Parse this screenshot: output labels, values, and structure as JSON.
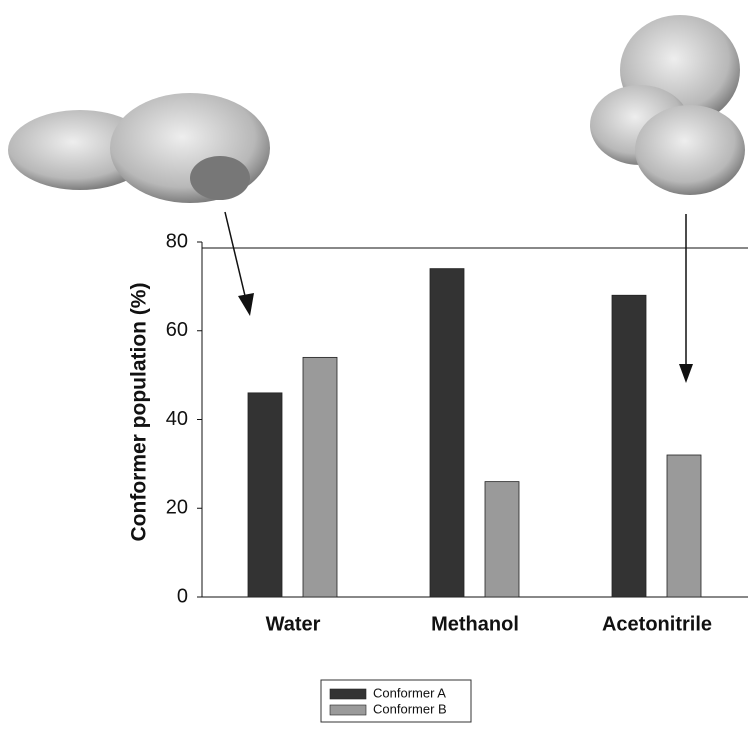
{
  "chart_data": {
    "type": "bar",
    "y_label": "Conformer population (%)",
    "categories": [
      "Water",
      "Methanol",
      "Acetonitrile"
    ],
    "series": [
      {
        "name": "Conformer A",
        "color": "#333333",
        "values": [
          46,
          74,
          68
        ]
      },
      {
        "name": "Conformer B",
        "color": "#9a9a9a",
        "values": [
          54,
          26,
          32
        ]
      }
    ],
    "ylim": [
      0,
      80
    ],
    "yticks": [
      0,
      20,
      40,
      60,
      80
    ]
  }
}
